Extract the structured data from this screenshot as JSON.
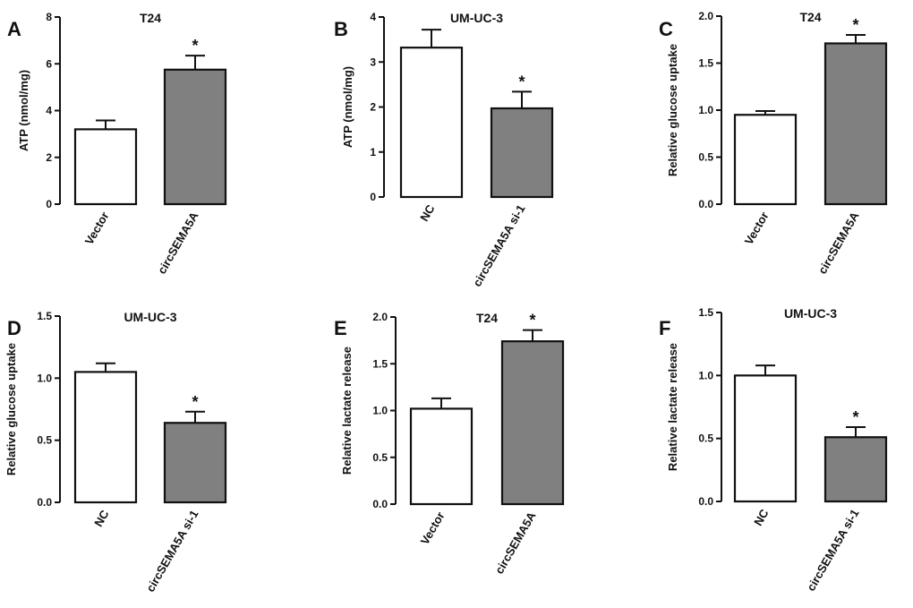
{
  "chart_data": [
    {
      "panel": "A",
      "type": "bar",
      "title": "T24",
      "ylabel": "ATP (nmol/mg)",
      "xlabel": "",
      "ylim": [
        0,
        8
      ],
      "yticks": [
        0,
        2,
        4,
        6,
        8
      ],
      "tick_decimals": 0,
      "categories": [
        "Vector",
        "circSEMA5A"
      ],
      "values": [
        3.2,
        5.75
      ],
      "errors": [
        0.38,
        0.6
      ],
      "colors": [
        "#ffffff",
        "#808080"
      ],
      "significance": [
        "",
        "*"
      ]
    },
    {
      "panel": "B",
      "type": "bar",
      "title": "UM-UC-3",
      "ylabel": "ATP (nmol/mg)",
      "xlabel": "",
      "ylim": [
        0,
        4
      ],
      "yticks": [
        0,
        1,
        2,
        3,
        4
      ],
      "tick_decimals": 0,
      "categories": [
        "NC",
        "circSEMA5A si-1"
      ],
      "values": [
        3.32,
        1.97
      ],
      "errors": [
        0.4,
        0.37
      ],
      "colors": [
        "#ffffff",
        "#808080"
      ],
      "significance": [
        "",
        "*"
      ]
    },
    {
      "panel": "C",
      "type": "bar",
      "title": "T24",
      "ylabel": "Relative glucose uptake",
      "xlabel": "",
      "ylim": [
        0,
        2.0
      ],
      "yticks": [
        0.0,
        0.5,
        1.0,
        1.5,
        2.0
      ],
      "tick_decimals": 1,
      "categories": [
        "Vector",
        "circSEMA5A"
      ],
      "values": [
        0.95,
        1.71
      ],
      "errors": [
        0.04,
        0.09
      ],
      "colors": [
        "#ffffff",
        "#808080"
      ],
      "significance": [
        "",
        "*"
      ]
    },
    {
      "panel": "D",
      "type": "bar",
      "title": "UM-UC-3",
      "ylabel": "Relative glucose uptake",
      "xlabel": "",
      "ylim": [
        0,
        1.5
      ],
      "yticks": [
        0.0,
        0.5,
        1.0,
        1.5
      ],
      "tick_decimals": 1,
      "categories": [
        "NC",
        "circSEMA5A si-1"
      ],
      "values": [
        1.05,
        0.64
      ],
      "errors": [
        0.07,
        0.09
      ],
      "colors": [
        "#ffffff",
        "#808080"
      ],
      "significance": [
        "",
        "*"
      ]
    },
    {
      "panel": "E",
      "type": "bar",
      "title": "T24",
      "ylabel": "Relative lactate release",
      "xlabel": "",
      "ylim": [
        0,
        2.0
      ],
      "yticks": [
        0.0,
        0.5,
        1.0,
        1.5,
        2.0
      ],
      "tick_decimals": 1,
      "categories": [
        "Vector",
        "circSEMA5A"
      ],
      "values": [
        1.02,
        1.74
      ],
      "errors": [
        0.11,
        0.12
      ],
      "colors": [
        "#ffffff",
        "#808080"
      ],
      "significance": [
        "",
        "*"
      ]
    },
    {
      "panel": "F",
      "type": "bar",
      "title": "UM-UC-3",
      "ylabel": "Relative lactate release",
      "xlabel": "",
      "ylim": [
        0,
        1.5
      ],
      "yticks": [
        0.0,
        0.5,
        1.0,
        1.5
      ],
      "tick_decimals": 1,
      "categories": [
        "NC",
        "circSEMA5A si-1"
      ],
      "values": [
        1.0,
        0.51
      ],
      "errors": [
        0.08,
        0.08
      ],
      "colors": [
        "#ffffff",
        "#808080"
      ],
      "significance": [
        "",
        "*"
      ]
    }
  ]
}
